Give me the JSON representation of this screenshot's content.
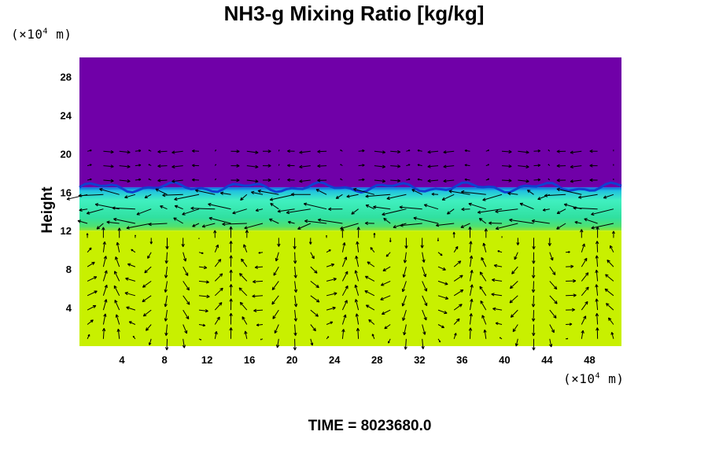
{
  "chart_data": {
    "type": "heatmap",
    "title": "NH3-g Mixing Ratio [kg/kg]",
    "ylabel": "Height",
    "xlabel": "",
    "x_units": {
      "prefix": "(×10",
      "exp": "4",
      "suffix": " m)"
    },
    "y_units": {
      "prefix": "(×10",
      "exp": "4",
      "suffix": " m)"
    },
    "xlim": [
      0,
      51
    ],
    "ylim": [
      0,
      30
    ],
    "x_ticks": [
      4,
      8,
      12,
      16,
      20,
      24,
      28,
      32,
      36,
      40,
      44,
      48
    ],
    "y_ticks": [
      4,
      8,
      12,
      16,
      20,
      24,
      28
    ],
    "layers": [
      {
        "name": "upper",
        "from": 16.5,
        "to": 30,
        "color": "#7000a8"
      },
      {
        "name": "transition",
        "from": 12,
        "to": 16.5,
        "color": "#30e0a0"
      },
      {
        "name": "lower",
        "from": 0,
        "to": 12,
        "color": "#c8f000"
      }
    ],
    "overlay": "wind vectors"
  },
  "footer": {
    "time_label": "TIME = 8023680.0"
  }
}
